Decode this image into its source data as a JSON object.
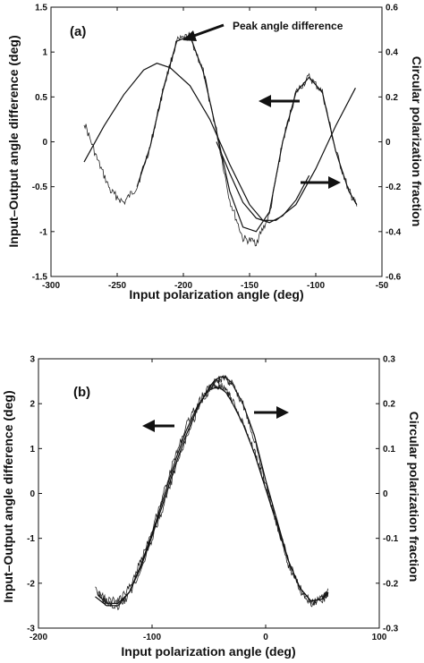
{
  "chart_data": [
    {
      "type": "line",
      "panel_label": "(a)",
      "xlabel": "Input polarization angle (deg)",
      "ylabel": "Input–Output angle difference (deg)",
      "y2label": "Circular polarization fraction",
      "xlim": [
        -300,
        -50
      ],
      "ylim": [
        -1.5,
        1.5
      ],
      "y2lim": [
        -0.6,
        0.6
      ],
      "xticks": [
        -300,
        -250,
        -200,
        -150,
        -100,
        -50
      ],
      "yticks": [
        -1.5,
        -1,
        -0.5,
        0,
        0.5,
        1,
        1.5
      ],
      "y2ticks": [
        -0.6,
        -0.4,
        -0.2,
        0,
        0.2,
        0.4,
        0.6
      ],
      "annotation": "Peak angle difference",
      "series": [
        {
          "axis": "left",
          "style": "noisy",
          "x": [
            -275,
            -265,
            -255,
            -245,
            -235,
            -225,
            -215,
            -205,
            -195,
            -185,
            -175,
            -165,
            -155,
            -145,
            -135,
            -125,
            -115,
            -105,
            -95,
            -85,
            -75,
            -69
          ],
          "y": [
            0.22,
            -0.2,
            -0.55,
            -0.68,
            -0.5,
            -0.05,
            0.6,
            1.12,
            1.18,
            0.78,
            0.12,
            -0.65,
            -1.08,
            -1.12,
            -0.82,
            0.0,
            0.55,
            0.72,
            0.55,
            -0.1,
            -0.55,
            -0.72
          ]
        },
        {
          "axis": "left",
          "style": "smooth",
          "x": [
            -235,
            -225,
            -215,
            -205,
            -195,
            -185,
            -175,
            -165,
            -155,
            -145,
            -135,
            -125,
            -115,
            -105,
            -95,
            -85,
            -75,
            -69
          ],
          "y": [
            -0.5,
            -0.05,
            0.6,
            1.12,
            1.18,
            0.78,
            0.12,
            -0.55,
            -0.95,
            -1.0,
            -0.78,
            0.0,
            0.55,
            0.72,
            0.55,
            -0.1,
            -0.55,
            -0.7
          ]
        },
        {
          "axis": "right",
          "style": "smooth",
          "x": [
            -275,
            -260,
            -245,
            -230,
            -220,
            -210,
            -195,
            -180,
            -165,
            -150,
            -140,
            -130,
            -115,
            -100,
            -85,
            -70
          ],
          "y": [
            -0.09,
            0.07,
            0.21,
            0.32,
            0.35,
            0.33,
            0.25,
            0.1,
            -0.1,
            -0.28,
            -0.35,
            -0.35,
            -0.28,
            -0.12,
            0.07,
            0.24
          ]
        },
        {
          "axis": "right",
          "style": "smooth",
          "x": [
            -175,
            -165,
            -155,
            -145,
            -135,
            -125,
            -115,
            -105
          ],
          "y": [
            0.0,
            -0.14,
            -0.27,
            -0.34,
            -0.36,
            -0.33,
            -0.26,
            -0.15
          ]
        }
      ]
    },
    {
      "type": "line",
      "panel_label": "(b)",
      "xlabel": "Input polarization angle (deg)",
      "ylabel": "Input–Output angle difference (deg)",
      "y2label": "Circular polarization fraction",
      "xlim": [
        -200,
        100
      ],
      "ylim": [
        -3,
        3
      ],
      "y2lim": [
        -0.3,
        0.3
      ],
      "xticks": [
        -200,
        -100,
        0,
        100
      ],
      "yticks": [
        -3,
        -2,
        -1,
        0,
        1,
        2,
        3
      ],
      "y2ticks": [
        -0.3,
        -0.2,
        -0.1,
        0,
        0.1,
        0.2,
        0.3
      ],
      "series": [
        {
          "axis": "left",
          "style": "noisy",
          "x": [
            -148,
            -140,
            -130,
            -120,
            -110,
            -100,
            -90,
            -80,
            -70,
            -60,
            -50,
            -45,
            -40,
            -35,
            -30,
            -20,
            -10,
            0,
            10,
            20,
            30,
            40,
            50,
            55
          ],
          "y": [
            -2.2,
            -2.38,
            -2.4,
            -2.1,
            -1.5,
            -0.8,
            0.0,
            0.8,
            1.5,
            2.0,
            2.38,
            2.42,
            2.4,
            2.3,
            2.1,
            1.6,
            0.95,
            0.15,
            -0.65,
            -1.5,
            -2.1,
            -2.45,
            -2.4,
            -2.2
          ]
        },
        {
          "axis": "left",
          "style": "smooth",
          "x": [
            -148,
            -140,
            -130,
            -120,
            -110,
            -100,
            -90,
            -80,
            -70,
            -60,
            -50,
            -45,
            -40,
            -35,
            -30,
            -20,
            -10,
            0,
            10,
            20,
            30,
            40,
            50,
            55
          ],
          "y": [
            -2.25,
            -2.45,
            -2.45,
            -2.2,
            -1.6,
            -0.9,
            -0.1,
            0.7,
            1.4,
            1.95,
            2.3,
            2.35,
            2.35,
            2.25,
            2.05,
            1.55,
            0.9,
            0.1,
            -0.7,
            -1.5,
            -2.1,
            -2.4,
            -2.35,
            -2.2
          ]
        },
        {
          "axis": "right",
          "style": "noisy",
          "x": [
            -150,
            -140,
            -130,
            -120,
            -110,
            -100,
            -90,
            -80,
            -70,
            -60,
            -50,
            -45,
            -40,
            -35,
            -30,
            -20,
            -10,
            0,
            10,
            20,
            30,
            40,
            50,
            55
          ],
          "y": [
            -0.215,
            -0.245,
            -0.255,
            -0.225,
            -0.17,
            -0.1,
            -0.03,
            0.05,
            0.12,
            0.185,
            0.23,
            0.248,
            0.255,
            0.255,
            0.245,
            0.2,
            0.12,
            0.02,
            -0.07,
            -0.16,
            -0.215,
            -0.245,
            -0.235,
            -0.215
          ]
        },
        {
          "axis": "right",
          "style": "smooth",
          "x": [
            -150,
            -140,
            -130,
            -120,
            -110,
            -100,
            -90,
            -80,
            -70,
            -60,
            -50,
            -45,
            -40,
            -35,
            -30,
            -20,
            -10,
            0,
            10,
            20,
            30,
            40,
            50,
            55
          ],
          "y": [
            -0.23,
            -0.25,
            -0.25,
            -0.22,
            -0.165,
            -0.095,
            -0.02,
            0.06,
            0.13,
            0.19,
            0.235,
            0.252,
            0.26,
            0.258,
            0.247,
            0.2,
            0.13,
            0.03,
            -0.06,
            -0.15,
            -0.21,
            -0.24,
            -0.235,
            -0.22
          ]
        }
      ]
    }
  ]
}
